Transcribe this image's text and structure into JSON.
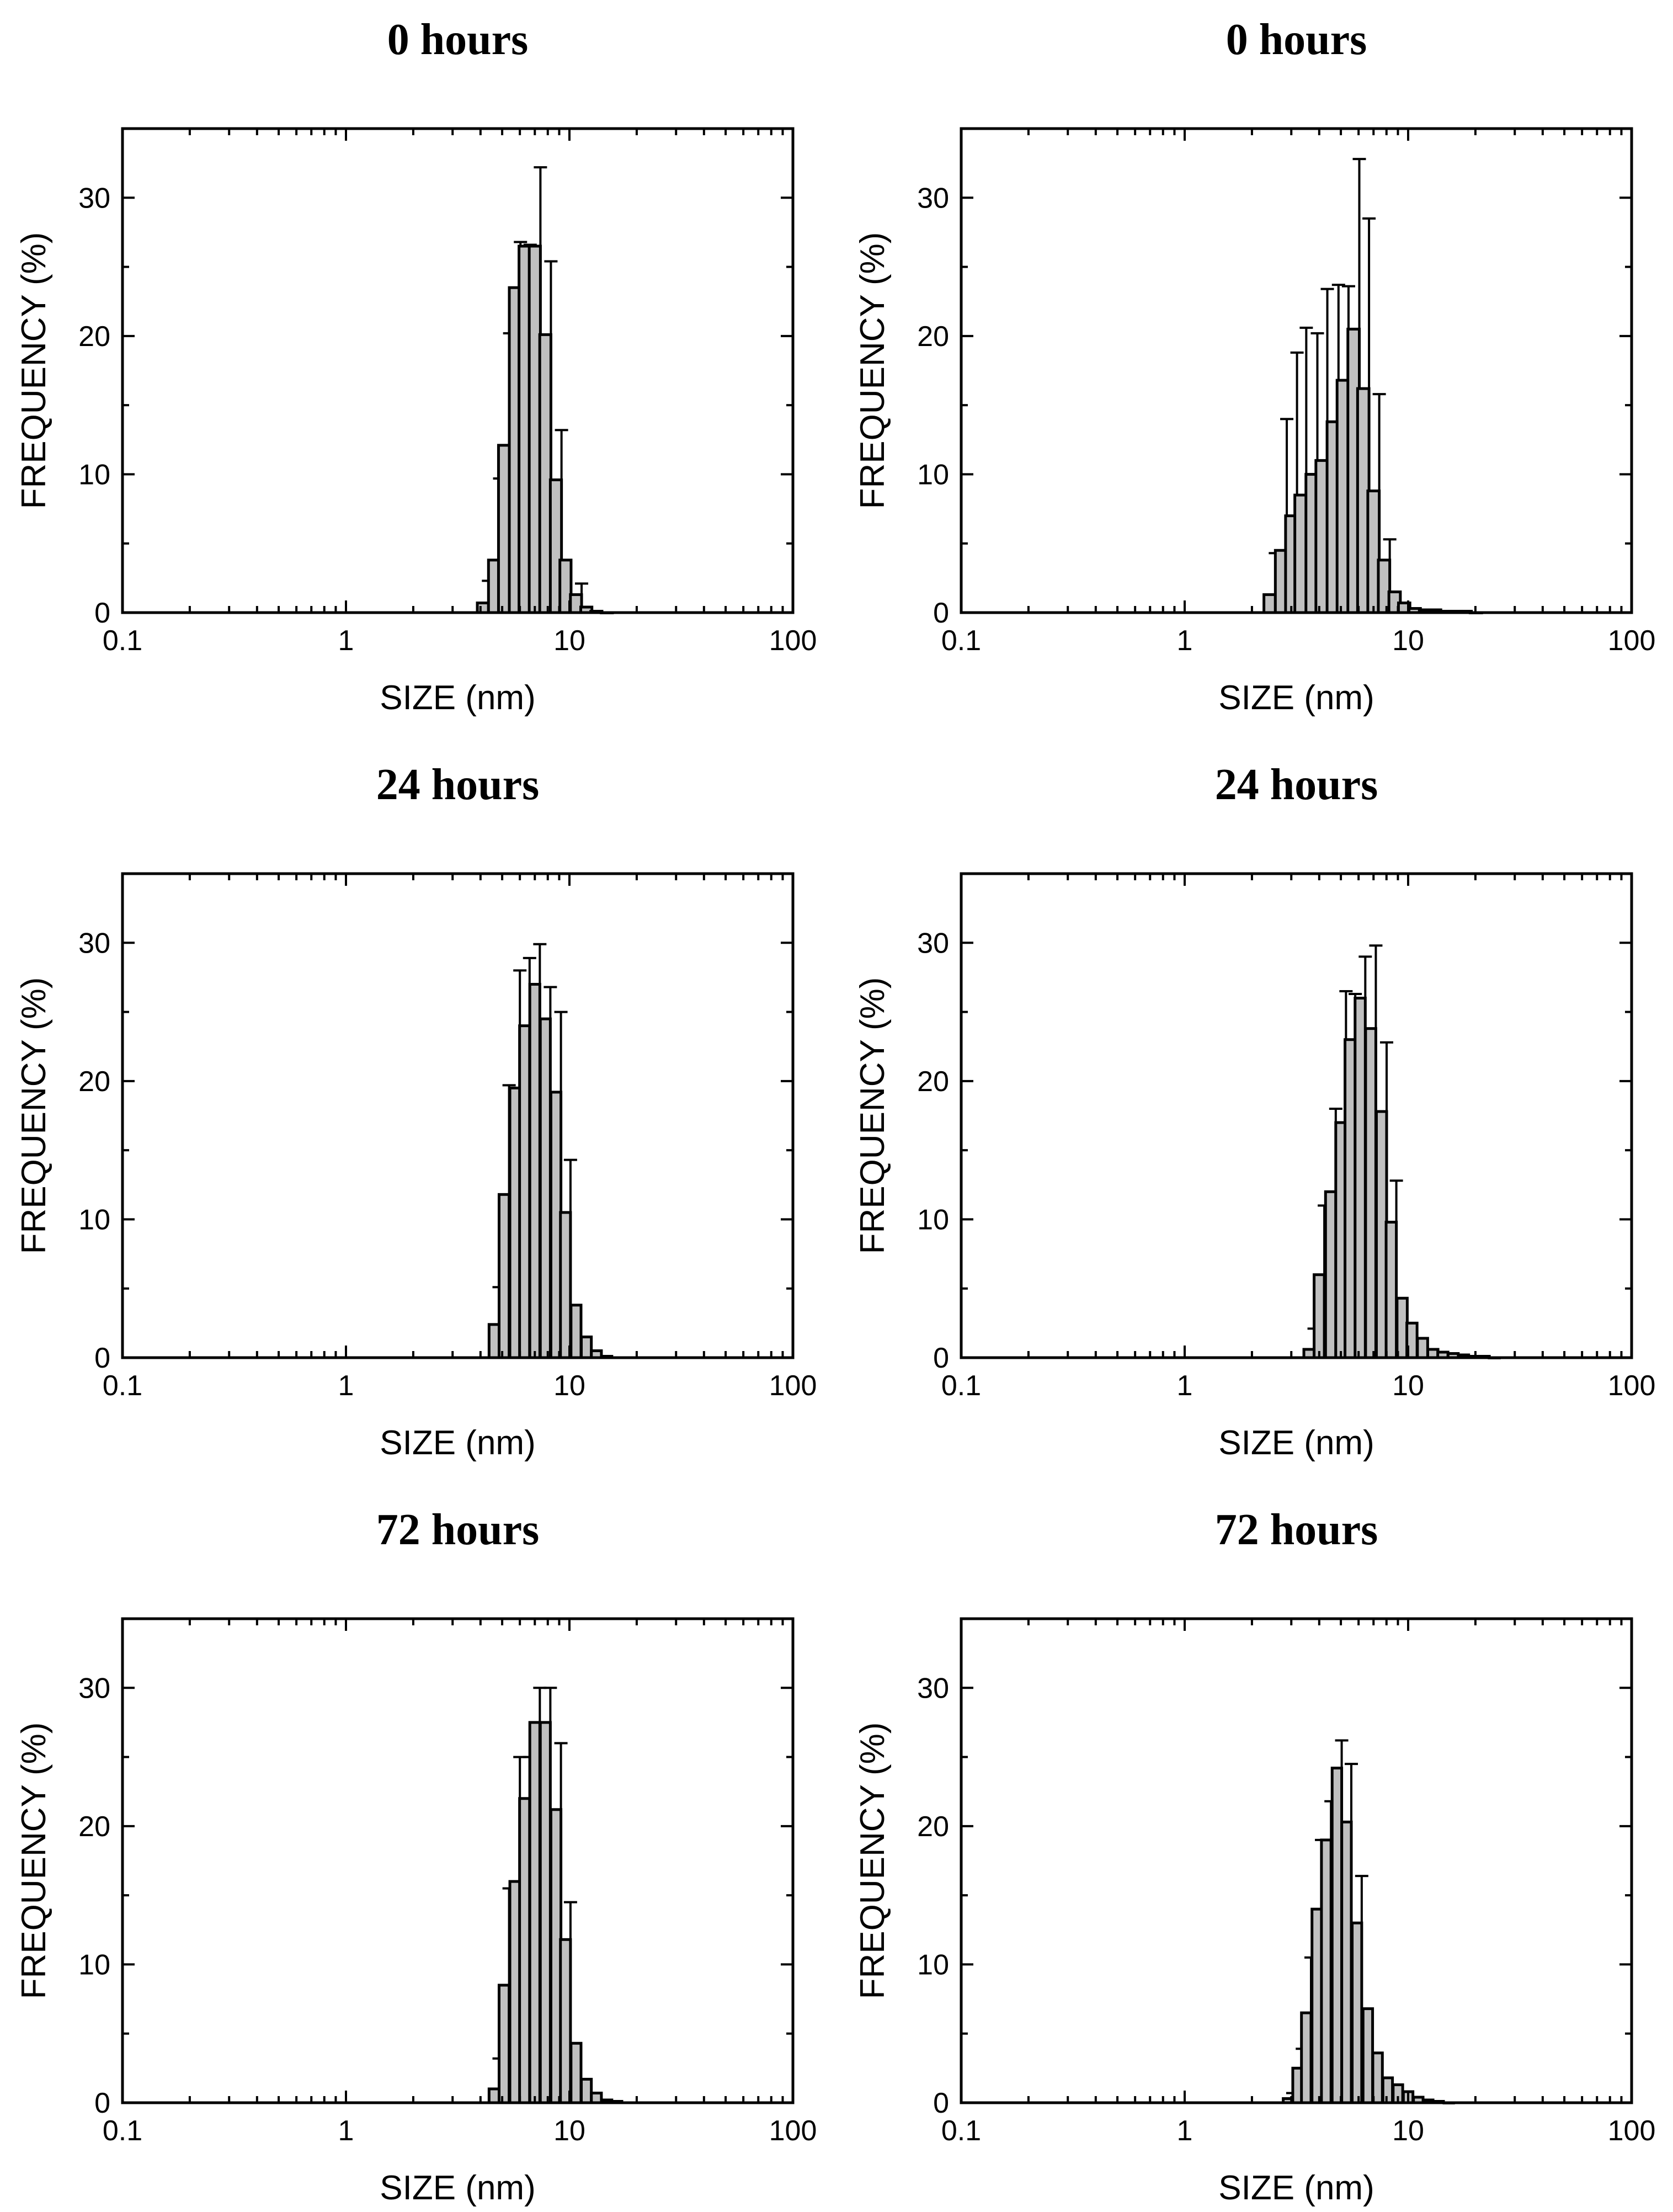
{
  "figure": {
    "xlabel": "SIZE (nm)",
    "ylabel": "FREQUENCY (%)",
    "bar_color": "#c0c0c0",
    "edge_color": "#000000"
  },
  "chart_data": [
    {
      "type": "bar",
      "title": "0 hours",
      "xlabel": "SIZE (nm)",
      "ylabel": "FREQUENCY (%)",
      "xscale": "log",
      "xlim": [
        0.1,
        100
      ],
      "ylim": [
        0,
        35
      ],
      "xticks": [
        "0.1",
        "1",
        "10",
        "100"
      ],
      "yticks": [
        "0",
        "10",
        "20",
        "30"
      ],
      "x": [
        4.1,
        4.6,
        5.1,
        5.7,
        6.3,
        7.0,
        7.8,
        8.7,
        9.6,
        10.7,
        11.9,
        13.2,
        14.7
      ],
      "values": [
        0.7,
        3.8,
        12.1,
        23.5,
        26.5,
        26.5,
        20.1,
        9.6,
        3.8,
        1.3,
        0.4,
        0.1,
        0.0
      ],
      "errors": [
        1.6,
        5.9,
        8.1,
        3.3,
        0.1,
        5.7,
        5.3,
        3.6,
        0,
        0.8,
        0,
        0,
        0
      ]
    },
    {
      "type": "bar",
      "title": "0 hours",
      "xlabel": "SIZE (nm)",
      "ylabel": "FREQUENCY (%)",
      "xscale": "log",
      "xlim": [
        0.1,
        100
      ],
      "ylim": [
        0,
        35
      ],
      "xticks": [
        "0.1",
        "1",
        "10",
        "100"
      ],
      "yticks": [
        "0",
        "10",
        "20",
        "30"
      ],
      "x": [
        2.4,
        2.7,
        3.0,
        3.3,
        3.7,
        4.1,
        4.6,
        5.1,
        5.7,
        6.3,
        7.0,
        7.8,
        8.7,
        9.6,
        10.7,
        11.9,
        13.2,
        14.7,
        16.3,
        18.1,
        20.1
      ],
      "values": [
        1.3,
        4.5,
        7.0,
        8.5,
        10.0,
        11.0,
        13.8,
        16.8,
        20.5,
        16.2,
        8.8,
        3.8,
        1.5,
        0.7,
        0.3,
        0.2,
        0.2,
        0.1,
        0.1,
        0.1,
        0.0
      ],
      "errors": [
        3.0,
        9.5,
        11.8,
        12.1,
        10.2,
        12.4,
        9.9,
        6.8,
        12.3,
        12.3,
        7.0,
        1.5,
        0,
        0,
        0,
        0,
        0,
        0,
        0,
        0,
        0
      ]
    },
    {
      "type": "bar",
      "title": "24 hours",
      "xlabel": "SIZE (nm)",
      "ylabel": "FREQUENCY (%)",
      "xscale": "log",
      "xlim": [
        0.1,
        100
      ],
      "ylim": [
        0,
        35
      ],
      "xticks": [
        "0.1",
        "1",
        "10",
        "100"
      ],
      "yticks": [
        "0",
        "10",
        "20",
        "30"
      ],
      "x": [
        4.6,
        5.1,
        5.7,
        6.3,
        7.0,
        7.8,
        8.7,
        9.6,
        10.7,
        11.9,
        13.2,
        14.7
      ],
      "values": [
        2.4,
        11.8,
        19.5,
        24.0,
        27.0,
        24.5,
        19.2,
        10.5,
        3.8,
        1.5,
        0.5,
        0.1
      ],
      "errors": [
        2.7,
        7.9,
        8.5,
        4.9,
        2.9,
        2.3,
        5.8,
        3.8,
        0,
        0,
        0,
        0
      ]
    },
    {
      "type": "bar",
      "title": "24 hours",
      "xlabel": "SIZE (nm)",
      "ylabel": "FREQUENCY (%)",
      "xscale": "log",
      "xlim": [
        0.1,
        100
      ],
      "ylim": [
        0,
        35
      ],
      "xticks": [
        "0.1",
        "1",
        "10",
        "100"
      ],
      "yticks": [
        "0",
        "10",
        "20",
        "30"
      ],
      "x": [
        3.6,
        4.0,
        4.5,
        5.0,
        5.5,
        6.1,
        6.8,
        7.6,
        8.4,
        9.4,
        10.4,
        11.6,
        12.9,
        14.3,
        15.9,
        17.7,
        19.7,
        21.9,
        24.3
      ],
      "values": [
        0.6,
        6.0,
        12.0,
        17.0,
        23.0,
        26.0,
        23.8,
        17.8,
        9.8,
        4.3,
        2.5,
        1.4,
        0.6,
        0.4,
        0.3,
        0.2,
        0.1,
        0.1,
        0.0
      ],
      "errors": [
        1.5,
        5.0,
        6.0,
        9.5,
        3.3,
        3.0,
        6.0,
        5.0,
        3.0,
        0,
        0,
        0,
        0,
        0,
        0,
        0,
        0,
        0,
        0
      ]
    },
    {
      "type": "bar",
      "title": "72 hours",
      "xlabel": "SIZE (nm)",
      "ylabel": "FREQUENCY (%)",
      "xscale": "log",
      "xlim": [
        0.1,
        100
      ],
      "ylim": [
        0,
        35
      ],
      "xticks": [
        "0.1",
        "1",
        "10",
        "100"
      ],
      "yticks": [
        "0",
        "10",
        "20",
        "30"
      ],
      "x": [
        4.6,
        5.1,
        5.7,
        6.3,
        7.0,
        7.8,
        8.7,
        9.6,
        10.7,
        11.9,
        13.2,
        14.7,
        16.3
      ],
      "values": [
        1.0,
        8.5,
        16.0,
        22.0,
        27.5,
        27.5,
        21.2,
        11.8,
        4.3,
        1.7,
        0.7,
        0.2,
        0.1
      ],
      "errors": [
        2.2,
        7.0,
        9.0,
        3.0,
        2.5,
        2.5,
        4.8,
        2.7,
        0,
        0,
        0,
        0,
        0
      ]
    },
    {
      "type": "bar",
      "title": "72 hours",
      "xlabel": "SIZE (nm)",
      "ylabel": "FREQUENCY (%)",
      "xscale": "log",
      "xlim": [
        0.1,
        100
      ],
      "ylim": [
        0,
        35
      ],
      "xticks": [
        "0.1",
        "1",
        "10",
        "100"
      ],
      "yticks": [
        "0",
        "10",
        "20",
        "30"
      ],
      "x": [
        2.9,
        3.2,
        3.5,
        3.9,
        4.3,
        4.8,
        5.3,
        5.9,
        6.6,
        7.3,
        8.1,
        9.0,
        10.0,
        11.1,
        12.3,
        13.7,
        15.2
      ],
      "values": [
        0.3,
        2.5,
        6.5,
        14.0,
        19.0,
        24.2,
        20.3,
        13.0,
        6.8,
        3.6,
        1.8,
        1.3,
        0.8,
        0.4,
        0.2,
        0.1,
        0.0
      ],
      "errors": [
        0.4,
        1.4,
        4.0,
        5.0,
        2.8,
        2.0,
        4.2,
        3.4,
        0,
        0,
        0,
        0,
        0,
        0,
        0,
        0,
        0
      ]
    }
  ]
}
